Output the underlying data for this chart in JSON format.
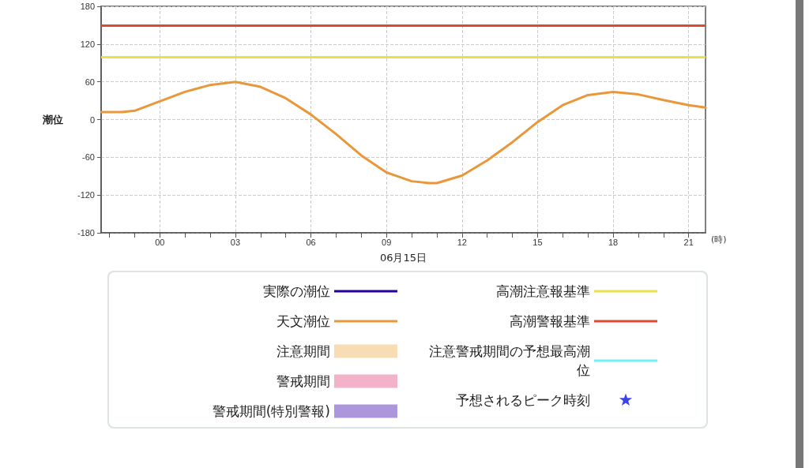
{
  "chart_data": {
    "type": "line",
    "xlabel": "06月15日",
    "ylabel": "潮位",
    "annotations": [
      "(時)"
    ],
    "x": [
      -2.33,
      -1.5,
      -1,
      0,
      1,
      2,
      3,
      4,
      5,
      6,
      7,
      8,
      9,
      10,
      10.7,
      11,
      12,
      13,
      14,
      15,
      16,
      17,
      18,
      19,
      20,
      21,
      21.67
    ],
    "series": [
      {
        "name": "実際の潮位",
        "type": "line",
        "color": "#2200a0",
        "values": [
          null,
          null,
          null,
          null,
          null,
          null,
          null,
          null,
          null,
          null,
          null,
          null,
          null,
          null,
          null,
          null,
          null,
          null,
          null,
          null,
          null,
          null,
          null,
          null,
          null,
          null,
          null
        ]
      },
      {
        "name": "天文潮位",
        "color": "#e8983a",
        "values": [
          12,
          12,
          14,
          29,
          44,
          55,
          60,
          52,
          34,
          8,
          -23,
          -57,
          -84,
          -98,
          -101,
          -101,
          -89,
          -65,
          -36,
          -4,
          23,
          39,
          44,
          40,
          31,
          23,
          19
        ]
      },
      {
        "name": "注意期間",
        "type": "area",
        "color": "#f8dcb4",
        "values": [
          null,
          null,
          null,
          null,
          null,
          null,
          null,
          null,
          null,
          null,
          null,
          null,
          null,
          null,
          null,
          null,
          null,
          null,
          null,
          null,
          null,
          null,
          null,
          null,
          null,
          null,
          null
        ]
      },
      {
        "name": "警戒期間",
        "type": "area",
        "color": "#f2b2c9",
        "values": [
          null,
          null,
          null,
          null,
          null,
          null,
          null,
          null,
          null,
          null,
          null,
          null,
          null,
          null,
          null,
          null,
          null,
          null,
          null,
          null,
          null,
          null,
          null,
          null,
          null,
          null,
          null
        ]
      },
      {
        "name": "警戒期間(特別警報)",
        "type": "area",
        "color": "#ad96dc",
        "values": [
          null,
          null,
          null,
          null,
          null,
          null,
          null,
          null,
          null,
          null,
          null,
          null,
          null,
          null,
          null,
          null,
          null,
          null,
          null,
          null,
          null,
          null,
          null,
          null,
          null,
          null,
          null
        ]
      },
      {
        "name": "注意警戒期間の予想最高潮位",
        "type": "line",
        "color": "#6ff0f8",
        "values": [
          null,
          null,
          null,
          null,
          null,
          null,
          null,
          null,
          null,
          null,
          null,
          null,
          null,
          null,
          null,
          null,
          null,
          null,
          null,
          null,
          null,
          null,
          null,
          null,
          null,
          null,
          null
        ]
      },
      {
        "name": "予想されるピーク時刻",
        "type": "scatter",
        "marker": "star",
        "color": "#0a14e0",
        "values": [
          null,
          null,
          null,
          null,
          null,
          null,
          null,
          null,
          null,
          null,
          null,
          null,
          null,
          null,
          null,
          null,
          null,
          null,
          null,
          null,
          null,
          null,
          null,
          null,
          null,
          null,
          null
        ]
      }
    ],
    "ref_lines": [
      {
        "axis": "y",
        "value": 100,
        "label": "高潮注意報基準",
        "color": "#ece04c"
      },
      {
        "axis": "y",
        "value": 150,
        "label": "高潮警報基準",
        "color": "#dc4a30"
      }
    ],
    "xlim": [
      -2.33,
      21.67
    ],
    "xticks": [
      {
        "value": -2,
        "label": null
      },
      {
        "value": -1,
        "label": null
      },
      {
        "value": 0,
        "label": "00"
      },
      {
        "value": 1,
        "label": null
      },
      {
        "value": 2,
        "label": null
      },
      {
        "value": 3,
        "label": "03"
      },
      {
        "value": 4,
        "label": null
      },
      {
        "value": 5,
        "label": null
      },
      {
        "value": 6,
        "label": "06"
      },
      {
        "value": 7,
        "label": null
      },
      {
        "value": 8,
        "label": null
      },
      {
        "value": 9,
        "label": "09"
      },
      {
        "value": 10,
        "label": null
      },
      {
        "value": 11,
        "label": null
      },
      {
        "value": 12,
        "label": "12"
      },
      {
        "value": 13,
        "label": null
      },
      {
        "value": 14,
        "label": null
      },
      {
        "value": 15,
        "label": "15"
      },
      {
        "value": 16,
        "label": null
      },
      {
        "value": 17,
        "label": null
      },
      {
        "value": 18,
        "label": "18"
      },
      {
        "value": 19,
        "label": null
      },
      {
        "value": 20,
        "label": null
      },
      {
        "value": 21,
        "label": "21"
      }
    ],
    "ylim": [
      -180,
      180
    ],
    "yticks": [
      -180,
      -120,
      -60,
      0,
      60,
      120,
      180
    ],
    "grid": true,
    "legend": "bottom",
    "marker": "none"
  }
}
